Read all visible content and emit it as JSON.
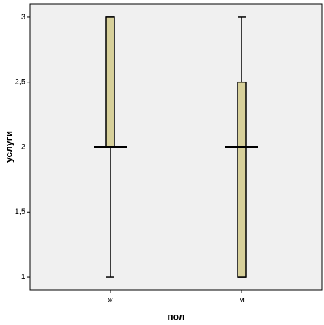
{
  "chart_data": {
    "type": "boxplot",
    "x_label": "пол",
    "y_label": "услуги",
    "categories": [
      "ж",
      "м"
    ],
    "boxes": [
      {
        "min": 1,
        "q1": 2,
        "median": 2,
        "q3": 3,
        "max": 3
      },
      {
        "min": 1,
        "q1": 1,
        "median": 2,
        "q3": 2.5,
        "max": 3
      }
    ],
    "color": "#d7d09a",
    "ylim": [
      0.9,
      3.1
    ],
    "yticks": [
      1,
      {
        "value": 1.5,
        "label": "1,5"
      },
      2,
      {
        "value": 2.5,
        "label": "2,5"
      },
      3
    ],
    "grid": false
  }
}
